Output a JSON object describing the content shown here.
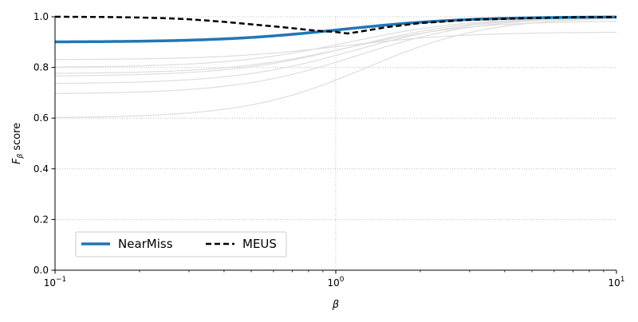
{
  "chart_data": {
    "type": "line",
    "x_scale": "log",
    "xlabel": "β",
    "ylabel_main": "F",
    "ylabel_sub": "β",
    "ylabel_rest": " score",
    "xlim": [
      0.1,
      10
    ],
    "ylim": [
      0,
      1
    ],
    "x_ticks": [
      {
        "value": 0.1,
        "base": "10",
        "exp": "−1"
      },
      {
        "value": 1,
        "base": "10",
        "exp": "0"
      },
      {
        "value": 10,
        "base": "10",
        "exp": "1"
      }
    ],
    "y_ticks": [
      {
        "value": 0.0,
        "label": "0.0"
      },
      {
        "value": 0.2,
        "label": "0.2"
      },
      {
        "value": 0.4,
        "label": "0.4"
      },
      {
        "value": 0.6,
        "label": "0.6"
      },
      {
        "value": 0.8,
        "label": "0.8"
      },
      {
        "value": 1.0,
        "label": "1.0"
      }
    ],
    "grid": "dotted",
    "legend_position": "lower-left",
    "background_curves": [
      {
        "recall": 1.0,
        "precision": 0.8
      },
      {
        "recall": 1.0,
        "precision": 0.765
      },
      {
        "recall": 1.0,
        "precision": 0.695
      },
      {
        "recall": 0.94,
        "precision": 0.83
      },
      {
        "recall": 0.985,
        "precision": 0.775
      },
      {
        "recall": 1.0,
        "precision": 0.735
      },
      {
        "recall": 1.0,
        "precision": 0.6
      }
    ],
    "series": [
      {
        "name": "NearMiss",
        "style": "solid",
        "color": "#1f77b4",
        "recall": 1.0,
        "precision": 0.9
      },
      {
        "name": "MEUS",
        "style": "dashed",
        "color": "#000000",
        "x": [
          0.1,
          0.15,
          0.2,
          0.25,
          0.3,
          0.4,
          0.5,
          0.6,
          0.7,
          0.8,
          0.9,
          1.0,
          1.1,
          1.2,
          1.5,
          2,
          3,
          5,
          7,
          10
        ],
        "y": [
          1.0,
          0.999,
          0.997,
          0.994,
          0.99,
          0.98,
          0.97,
          0.962,
          0.955,
          0.948,
          0.943,
          0.94,
          0.934,
          0.94,
          0.958,
          0.975,
          0.988,
          0.995,
          0.998,
          0.999
        ]
      }
    ],
    "background_color": "#dddddd"
  }
}
